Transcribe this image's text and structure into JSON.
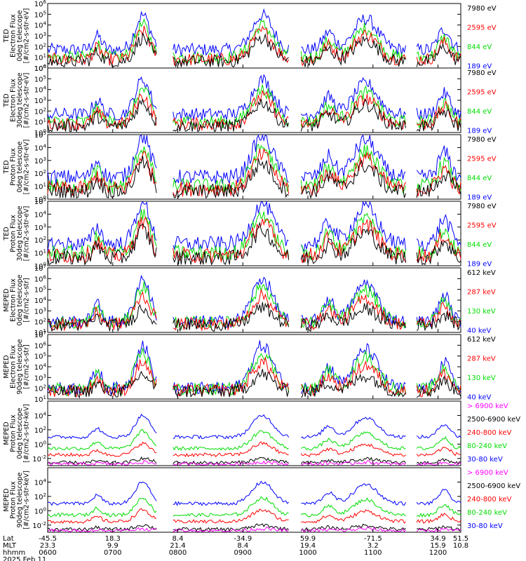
{
  "chart_data": {
    "type": "line",
    "y_scale": "log",
    "colors": {
      "magenta": "#ff00ff",
      "black": "#000000",
      "red": "#ff0000",
      "green": "#00dd00",
      "blue": "#0000ff"
    },
    "panels": [
      {
        "ylabel": [
          "TED",
          "Electron Flux",
          "0deg telescope",
          "[#/cm2-s-str-eV]"
        ],
        "yticks": [
          "10^0",
          "10^1",
          "10^2",
          "10^3",
          "10^4",
          "10^5",
          "10^6"
        ],
        "ylog": [
          0,
          6
        ],
        "legend": [
          {
            "label": "7980 eV",
            "color": "black"
          },
          {
            "label": "2595 eV",
            "color": "red"
          },
          {
            "label": "844 eV",
            "color": "green"
          },
          {
            "label": "189 eV",
            "color": "blue"
          }
        ]
      },
      {
        "ylabel": [
          "TED",
          "Electron Flux",
          "30deg telescope",
          "[#/cm2-s-str-eV]"
        ],
        "yticks": [
          "10^0",
          "10^1",
          "10^2",
          "10^3",
          "10^4",
          "10^5",
          "10^6"
        ],
        "ylog": [
          0,
          6
        ],
        "legend": [
          {
            "label": "7980 eV",
            "color": "black"
          },
          {
            "label": "2595 eV",
            "color": "red"
          },
          {
            "label": "844 eV",
            "color": "green"
          },
          {
            "label": "189 eV",
            "color": "blue"
          }
        ]
      },
      {
        "ylabel": [
          "TED",
          "Proton Flux",
          "0deg telescope",
          "[#/cm2-s-str-eV]"
        ],
        "yticks": [
          "10^0",
          "10^1",
          "10^2",
          "10^3",
          "10^4",
          "10^5"
        ],
        "ylog": [
          0,
          5
        ],
        "legend": [
          {
            "label": "7980 eV",
            "color": "black"
          },
          {
            "label": "2595 eV",
            "color": "red"
          },
          {
            "label": "844 eV",
            "color": "green"
          },
          {
            "label": "189 eV",
            "color": "blue"
          }
        ]
      },
      {
        "ylabel": [
          "TED",
          "Proton Flux",
          "30deg telescope",
          "[#/cm2-s-str-eV]"
        ],
        "yticks": [
          "10^0",
          "10^1",
          "10^2",
          "10^3",
          "10^4",
          "10^5"
        ],
        "ylog": [
          0,
          5
        ],
        "legend": [
          {
            "label": "7980 eV",
            "color": "black"
          },
          {
            "label": "2595 eV",
            "color": "red"
          },
          {
            "label": "844 eV",
            "color": "green"
          },
          {
            "label": "189 eV",
            "color": "blue"
          }
        ]
      },
      {
        "ylabel": [
          "MEPED",
          "Electron Flux",
          "0deg telescope",
          "[#/cm2-s-str]"
        ],
        "yticks": [
          "10^1",
          "10^2",
          "10^3",
          "10^4",
          "10^5",
          "10^6",
          "10^7"
        ],
        "ylog": [
          1,
          7
        ],
        "legend": [
          {
            "label": "612 keV",
            "color": "black"
          },
          {
            "label": "287 keV",
            "color": "red"
          },
          {
            "label": "130 keV",
            "color": "green"
          },
          {
            "label": "40 keV",
            "color": "blue"
          }
        ]
      },
      {
        "ylabel": [
          "MEPED",
          "Electron Flux",
          "90deg telescope",
          "[#/cm2-s-str]"
        ],
        "yticks": [
          "10^1",
          "10^2",
          "10^3",
          "10^4",
          "10^5",
          "10^6",
          "10^7"
        ],
        "ylog": [
          1,
          7
        ],
        "legend": [
          {
            "label": "612 keV",
            "color": "black"
          },
          {
            "label": "287 keV",
            "color": "red"
          },
          {
            "label": "130 keV",
            "color": "green"
          },
          {
            "label": "40 keV",
            "color": "blue"
          }
        ]
      },
      {
        "ylabel": [
          "MEPED",
          "Proton Flux",
          "0deg telescope",
          "[#/cm2-s-str-keV]"
        ],
        "yticks": [
          "10^-2",
          "10^0",
          "10^2",
          "10^4"
        ],
        "ylog": [
          -3,
          6
        ],
        "legend": [
          {
            "label": "> 6900 keV",
            "color": "magenta"
          },
          {
            "label": "2500-6900 keV",
            "color": "black"
          },
          {
            "label": "240-800 keV",
            "color": "red"
          },
          {
            "label": "80-240 keV",
            "color": "green"
          },
          {
            "label": "30-80 keV",
            "color": "blue"
          }
        ]
      },
      {
        "ylabel": [
          "MEPED",
          "Proton Flux",
          "90deg telescope",
          "[#/cm2-s-str-keV]"
        ],
        "yticks": [
          "10^-2",
          "10^0",
          "10^2",
          "10^4"
        ],
        "ylog": [
          -3,
          6
        ],
        "legend": [
          {
            "label": "> 6900 keV",
            "color": "magenta"
          },
          {
            "label": "2500-6900 keV",
            "color": "black"
          },
          {
            "label": "240-800 keV",
            "color": "red"
          },
          {
            "label": "80-240 keV",
            "color": "green"
          },
          {
            "label": "30-80 keV",
            "color": "blue"
          }
        ]
      }
    ],
    "x_axis": {
      "row_labels": [
        "Lat",
        "MLT",
        "hhmm"
      ],
      "ticks": [
        {
          "lat": "-45.5",
          "mlt": "23.3",
          "hhmm": "0600"
        },
        {
          "lat": "18.3",
          "mlt": "9.9",
          "hhmm": "0700"
        },
        {
          "lat": "8.4",
          "mlt": "21.4",
          "hhmm": "0800"
        },
        {
          "lat": "-34.9",
          "mlt": "8.4",
          "hhmm": "0900"
        },
        {
          "lat": "59.9",
          "mlt": "19.4",
          "hhmm": "1000"
        },
        {
          "lat": "-71.5",
          "mlt": "3.2",
          "hhmm": "1100"
        },
        {
          "lat": "34.9",
          "mlt": "15.9",
          "hhmm": "1200"
        }
      ],
      "end_label": {
        "lat": "51.5",
        "mlt": "10.8"
      },
      "date": "2025 Feb 11"
    }
  }
}
